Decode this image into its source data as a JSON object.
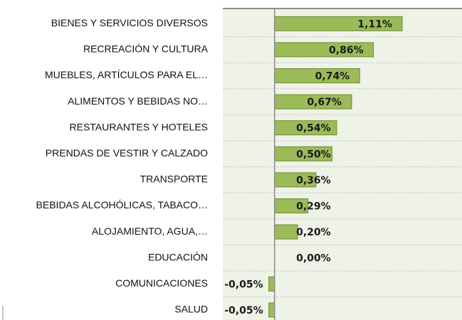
{
  "chart_data": {
    "type": "hbar",
    "categories": [
      "BIENES Y SERVICIOS DIVERSOS",
      "RECREACIÓN Y CULTURA",
      "MUEBLES, ARTÍCULOS PARA EL…",
      "ALIMENTOS Y BEBIDAS NO…",
      "RESTAURANTES Y HOTELES",
      "PRENDAS DE VESTIR Y CALZADO",
      "TRANSPORTE",
      "BEBIDAS ALCOHÓLICAS, TABACO…",
      "ALOJAMIENTO, AGUA,…",
      "EDUCACIÓN",
      "COMUNICACIONES",
      "SALUD"
    ],
    "values": [
      1.11,
      0.86,
      0.74,
      0.67,
      0.54,
      0.5,
      0.36,
      0.29,
      0.2,
      0.0,
      -0.05,
      -0.05
    ],
    "value_labels": [
      "1,11%",
      "0,86%",
      "0,74%",
      "0,67%",
      "0,54%",
      "0,50%",
      "0,36%",
      "0,29%",
      "0,20%",
      "0,00%",
      "-0,05%",
      "-0,05%"
    ],
    "color": "#9bbb59",
    "xlim": [
      -0.45,
      1.63
    ]
  }
}
